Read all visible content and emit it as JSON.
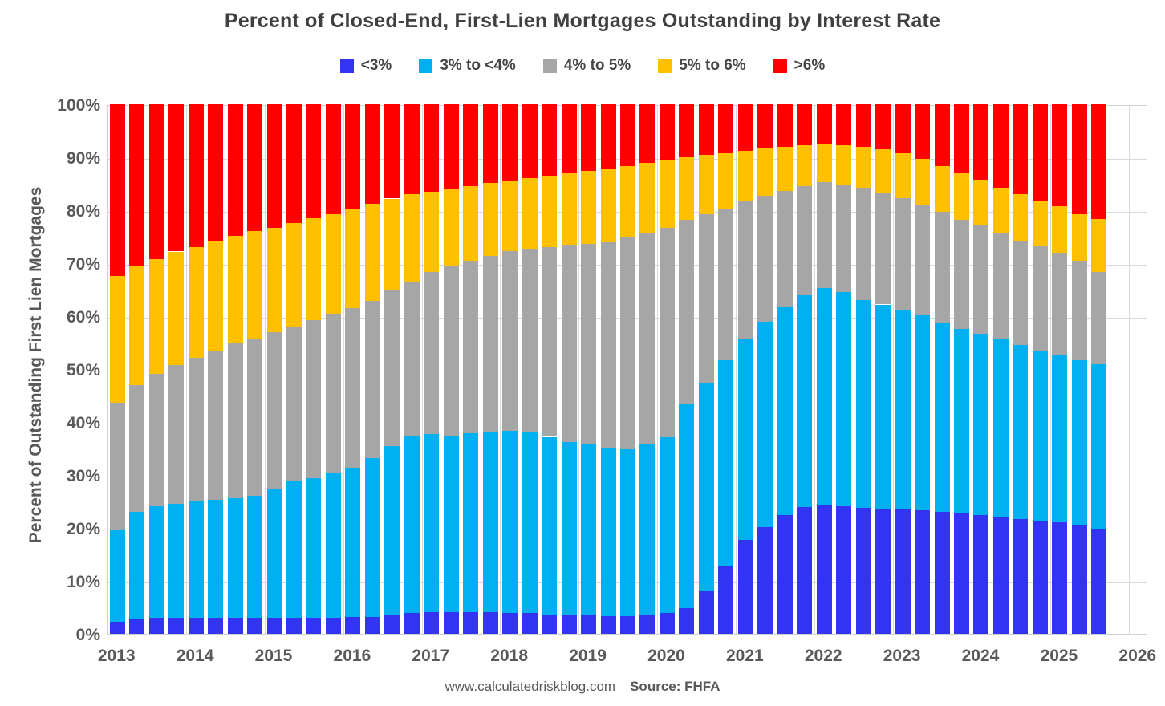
{
  "title": "Percent of Closed-End, First-Lien Mortgages Outstanding by Interest Rate",
  "y_axis": {
    "label": "Percent of Outstanding First Lien Mortgages",
    "ticks": [
      "100%",
      "90%",
      "80%",
      "70%",
      "60%",
      "50%",
      "40%",
      "30%",
      "20%",
      "10%",
      "0%"
    ]
  },
  "x_axis": {
    "years": [
      "2013",
      "2014",
      "2015",
      "2016",
      "2017",
      "2018",
      "2019",
      "2020",
      "2021",
      "2022",
      "2023",
      "2024",
      "2025",
      "2026"
    ]
  },
  "legend": [
    {
      "label": "<3%",
      "color": "#3333F2"
    },
    {
      "label": "3% to <4%",
      "color": "#00B0F0"
    },
    {
      "label": "4% to 5%",
      "color": "#A6A6A6"
    },
    {
      "label": "5% to 6%",
      "color": "#FFC000"
    },
    {
      "label": ">6%",
      "color": "#FF0000"
    }
  ],
  "footer": {
    "site": "www.calculatedriskblog.com",
    "source": "Source: FHFA"
  },
  "colors": {
    "grid": "#d9d9d9",
    "axis_text": "#595959",
    "title_text": "#404040"
  },
  "chart_data": {
    "type": "bar",
    "stacked": true,
    "title": "Percent of Closed-End, First-Lien Mortgages Outstanding by Interest Rate",
    "xlabel": "",
    "ylabel": "Percent of Outstanding First Lien Mortgages",
    "ylim": [
      0,
      100
    ],
    "grid": true,
    "legend_position": "top",
    "categories": [
      "2013 Q1",
      "2013 Q2",
      "2013 Q3",
      "2013 Q4",
      "2014 Q1",
      "2014 Q2",
      "2014 Q3",
      "2014 Q4",
      "2015 Q1",
      "2015 Q2",
      "2015 Q3",
      "2015 Q4",
      "2016 Q1",
      "2016 Q2",
      "2016 Q3",
      "2016 Q4",
      "2017 Q1",
      "2017 Q2",
      "2017 Q3",
      "2017 Q4",
      "2018 Q1",
      "2018 Q2",
      "2018 Q3",
      "2018 Q4",
      "2019 Q1",
      "2019 Q2",
      "2019 Q3",
      "2019 Q4",
      "2020 Q1",
      "2020 Q2",
      "2020 Q3",
      "2020 Q4",
      "2021 Q1",
      "2021 Q2",
      "2021 Q3",
      "2021 Q4",
      "2022 Q1",
      "2022 Q2",
      "2022 Q3",
      "2022 Q4",
      "2023 Q1",
      "2023 Q2",
      "2023 Q3",
      "2023 Q4",
      "2024 Q1",
      "2024 Q2",
      "2024 Q3",
      "2024 Q4",
      "2025 Q1",
      "2025 Q2",
      "2025 Q3"
    ],
    "series": [
      {
        "name": "<3%",
        "color": "#3333F2",
        "values": [
          2.2,
          2.8,
          3.0,
          3.0,
          3.0,
          3.0,
          3.0,
          3.1,
          3.0,
          3.1,
          3.1,
          3.1,
          3.2,
          3.2,
          3.7,
          4.0,
          4.1,
          4.1,
          4.1,
          4.1,
          4.0,
          3.9,
          3.7,
          3.6,
          3.5,
          3.4,
          3.4,
          3.5,
          3.9,
          4.9,
          8.1,
          12.8,
          17.7,
          20.1,
          22.4,
          23.9,
          24.4,
          24.1,
          23.8,
          23.6,
          23.5,
          23.3,
          23.1,
          22.9,
          22.4,
          22.0,
          21.7,
          21.4,
          21.0,
          20.5,
          19.8
        ]
      },
      {
        "name": "3% to <4%",
        "color": "#00B0F0",
        "values": [
          17.4,
          20.3,
          21.1,
          21.6,
          22.1,
          22.3,
          22.6,
          23.0,
          24.2,
          25.9,
          26.3,
          27.2,
          28.2,
          30.0,
          31.7,
          33.4,
          33.6,
          33.3,
          33.8,
          34.1,
          34.4,
          34.2,
          33.5,
          32.6,
          32.2,
          31.8,
          31.4,
          32.4,
          33.2,
          38.4,
          39.4,
          38.8,
          38.1,
          38.8,
          39.2,
          40.1,
          40.9,
          40.4,
          39.3,
          38.6,
          37.6,
          36.9,
          35.7,
          34.7,
          34.2,
          33.6,
          32.8,
          32.1,
          31.6,
          31.1,
          31.1
        ]
      },
      {
        "name": "4% to 5%",
        "color": "#A6A6A6",
        "values": [
          24.1,
          23.9,
          25.0,
          26.2,
          27.0,
          28.2,
          29.2,
          29.7,
          29.7,
          29.1,
          29.8,
          30.2,
          30.1,
          29.7,
          29.4,
          29.1,
          30.6,
          32.0,
          32.6,
          33.2,
          33.9,
          34.6,
          35.9,
          37.2,
          38.0,
          38.8,
          40.0,
          39.7,
          39.5,
          34.9,
          31.7,
          28.7,
          26.0,
          23.8,
          22.0,
          20.6,
          20.0,
          20.3,
          21.1,
          21.2,
          21.2,
          20.9,
          20.9,
          20.6,
          20.5,
          20.1,
          19.7,
          19.7,
          19.4,
          18.8,
          17.4
        ]
      },
      {
        "name": "5% to 6%",
        "color": "#FFC000",
        "values": [
          23.9,
          22.4,
          21.7,
          21.4,
          21.0,
          20.7,
          20.4,
          20.3,
          19.8,
          19.5,
          19.3,
          18.8,
          18.8,
          18.3,
          17.4,
          16.5,
          15.2,
          14.6,
          14.1,
          13.7,
          13.3,
          13.4,
          13.4,
          13.6,
          13.7,
          13.8,
          13.5,
          13.4,
          13.0,
          11.8,
          11.2,
          10.5,
          9.4,
          8.9,
          8.3,
          7.6,
          7.2,
          7.5,
          7.8,
          8.1,
          8.4,
          8.6,
          8.7,
          8.7,
          8.6,
          8.6,
          8.8,
          8.6,
          8.7,
          8.9,
          10.1
        ]
      },
      {
        "name": ">6%",
        "color": "#FF0000",
        "values": [
          32.4,
          30.6,
          29.2,
          27.8,
          26.9,
          25.8,
          24.8,
          23.9,
          23.3,
          22.4,
          21.5,
          20.7,
          19.7,
          18.8,
          17.8,
          17.0,
          16.5,
          16.0,
          15.4,
          14.9,
          14.4,
          13.9,
          13.5,
          13.0,
          12.6,
          12.2,
          11.7,
          11.0,
          10.4,
          10.0,
          9.6,
          9.2,
          8.8,
          8.4,
          8.1,
          7.8,
          7.5,
          7.7,
          8.0,
          8.5,
          9.3,
          10.3,
          11.6,
          13.1,
          14.3,
          15.7,
          17.0,
          18.2,
          19.3,
          20.7,
          21.6
        ]
      }
    ]
  }
}
